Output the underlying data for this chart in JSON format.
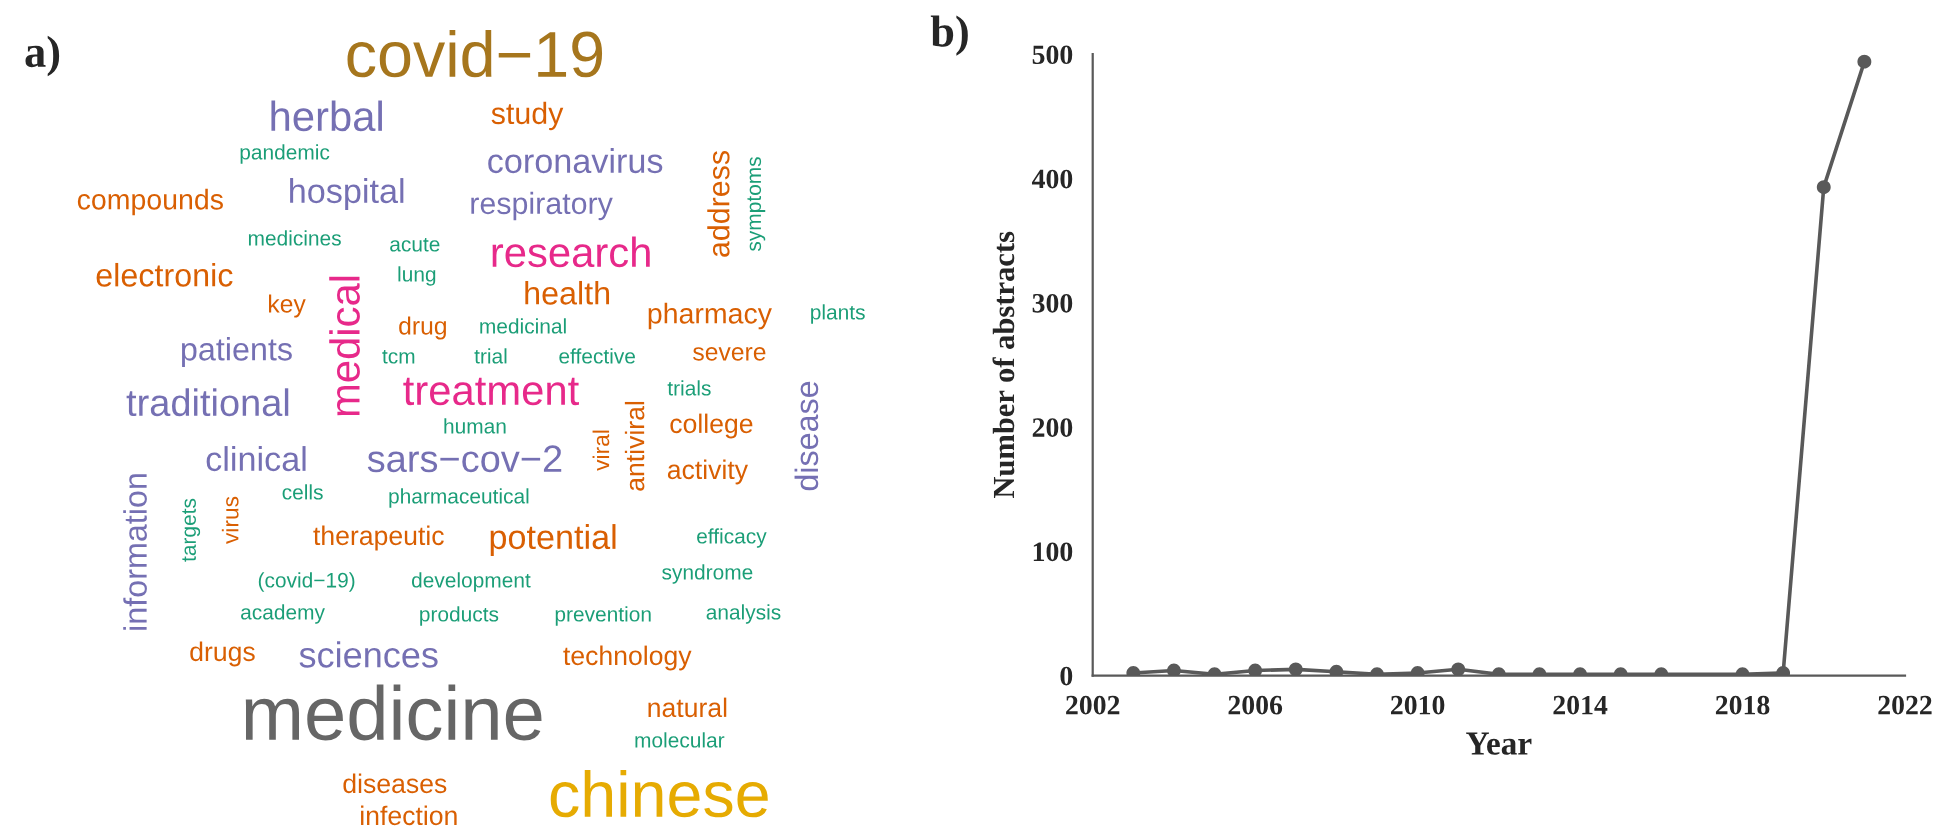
{
  "chart_data": [
    {
      "type": "other",
      "title": "a)",
      "annotations": [
        "covid−19",
        "herbal",
        "study",
        "pandemic",
        "coronavirus",
        "address",
        "symptoms",
        "compounds",
        "hospital",
        "respiratory",
        "medicines",
        "acute",
        "research",
        "electronic",
        "lung",
        "medical",
        "key",
        "health",
        "pharmacy",
        "plants",
        "drug",
        "medicinal",
        "patients",
        "tcm",
        "trial",
        "effective",
        "severe",
        "treatment",
        "traditional",
        "trials",
        "antiviral",
        "viral",
        "college",
        "human",
        "disease",
        "clinical",
        "sars−cov−2",
        "activity",
        "information",
        "targets",
        "virus",
        "cells",
        "pharmaceutical",
        "therapeutic",
        "potential",
        "efficacy",
        "(covid−19)",
        "development",
        "syndrome",
        "academy",
        "products",
        "prevention",
        "analysis",
        "drugs",
        "sciences",
        "technology",
        "medicine",
        "natural",
        "molecular",
        "diseases",
        "infection",
        "chinese"
      ],
      "colors": [
        "#a6761d",
        "#7570b3",
        "#d95f02",
        "#1b9e77",
        "#7570b3",
        "#d95f02",
        "#1b9e77",
        "#d95f02",
        "#7570b3",
        "#7570b3",
        "#1b9e77",
        "#1b9e77",
        "#e7298a",
        "#d95f02",
        "#1b9e77",
        "#e7298a",
        "#d95f02",
        "#d95f02",
        "#d95f02",
        "#1b9e77",
        "#d95f02",
        "#1b9e77",
        "#7570b3",
        "#1b9e77",
        "#1b9e77",
        "#1b9e77",
        "#d95f02",
        "#e7298a",
        "#7570b3",
        "#1b9e77",
        "#d95f02",
        "#d95f02",
        "#d95f02",
        "#1b9e77",
        "#7570b3",
        "#7570b3",
        "#7570b3",
        "#d95f02",
        "#7570b3",
        "#1b9e77",
        "#d95f02",
        "#1b9e77",
        "#1b9e77",
        "#d95f02",
        "#d95f02",
        "#1b9e77",
        "#1b9e77",
        "#1b9e77",
        "#1b9e77",
        "#1b9e77",
        "#1b9e77",
        "#1b9e77",
        "#1b9e77",
        "#d95f02",
        "#7570b3",
        "#d95f02",
        "#666666",
        "#d95f02",
        "#1b9e77",
        "#d95f02",
        "#d95f02",
        "#e6ab02"
      ]
    },
    {
      "type": "line",
      "title": "b)",
      "xlabel": "Year",
      "ylabel": "Number of abstracts",
      "x": [
        2003,
        2004,
        2005,
        2006,
        2007,
        2008,
        2009,
        2010,
        2011,
        2012,
        2013,
        2014,
        2015,
        2016,
        2018,
        2019,
        2020,
        2021
      ],
      "series": [
        {
          "color": "#595959",
          "values": [
            2,
            4,
            1,
            4,
            5,
            3,
            1,
            2,
            5,
            1,
            1,
            1,
            1,
            1,
            1,
            2,
            393,
            494
          ]
        }
      ],
      "marker": "circle",
      "line_style": "solid",
      "grid": false,
      "xlim": [
        2002,
        2022
      ],
      "xticks": [
        2002,
        2006,
        2010,
        2014,
        2018,
        2022
      ],
      "ylim": [
        0,
        500
      ],
      "yticks": [
        0,
        100,
        200,
        300,
        400,
        500
      ]
    }
  ]
}
